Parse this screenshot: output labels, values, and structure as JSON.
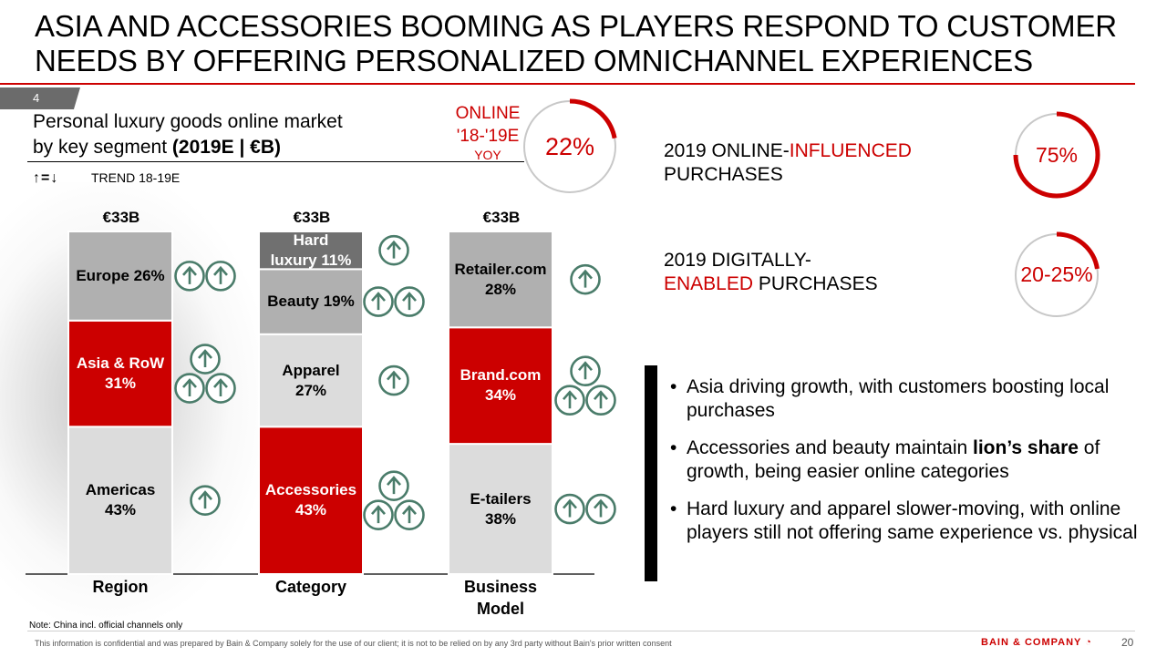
{
  "header": {
    "title_line1": "ASIA AND ACCESSORIES BOOMING AS PLAYERS RESPOND TO CUSTOMER",
    "title_line2": "NEEDS BY OFFERING PERSONALIZED OMNICHANNEL EXPERIENCES",
    "slide_tab": "4"
  },
  "chart_header": {
    "title_line1": "Personal luxury goods online market",
    "title_line2_plain": "by key segment ",
    "title_line2_bold": "(2019E | €B)",
    "trend_symbols": "↑=↓",
    "trend_label": "TREND 18-19E"
  },
  "colors": {
    "accent": "#cc0000",
    "dark_gray": "#707070",
    "mid_gray": "#b0b0b0",
    "light_gray": "#dcdcdc",
    "arrow_green": "#4a7c6a"
  },
  "chart_data": {
    "type": "bar",
    "stacking": "100% stacked",
    "columns": [
      {
        "category": "Region",
        "total": "€33B",
        "segments": [
          {
            "name": "Americas",
            "value": 43,
            "label_line1": "Americas",
            "label_line2": "43%",
            "color": "light",
            "trend_arrows": 1
          },
          {
            "name": "Asia & RoW",
            "value": 31,
            "label_line1": "Asia & RoW",
            "label_line2": "31%",
            "color": "red",
            "trend_arrows": 3
          },
          {
            "name": "Europe",
            "value": 26,
            "label_line1": "Europe 26%",
            "label_line2": "",
            "color": "mid",
            "trend_arrows": 2
          }
        ]
      },
      {
        "category": "Category",
        "total": "€33B",
        "segments": [
          {
            "name": "Accessories",
            "value": 43,
            "label_line1": "Accessories",
            "label_line2": "43%",
            "color": "red",
            "trend_arrows": 3
          },
          {
            "name": "Apparel",
            "value": 27,
            "label_line1": "Apparel",
            "label_line2": "27%",
            "color": "light",
            "trend_arrows": 1
          },
          {
            "name": "Beauty",
            "value": 19,
            "label_line1": "Beauty 19%",
            "label_line2": "",
            "color": "mid",
            "trend_arrows": 2
          },
          {
            "name": "Hard luxury",
            "value": 11,
            "label_line1": "Hard",
            "label_line2": "luxury 11%",
            "color": "dark",
            "trend_arrows": 1
          }
        ]
      },
      {
        "category_line1": "Business",
        "category_line2": "Model",
        "total": "€33B",
        "segments": [
          {
            "name": "E-tailers",
            "value": 38,
            "label_line1": "E-tailers",
            "label_line2": "38%",
            "color": "light",
            "trend_arrows": 2
          },
          {
            "name": "Brand.com",
            "value": 34,
            "label_line1": "Brand.com",
            "label_line2": "34%",
            "color": "red",
            "trend_arrows": 3
          },
          {
            "name": "Retailer.com",
            "value": 28,
            "label_line1": "Retailer.com",
            "label_line2": "28%",
            "color": "mid",
            "trend_arrows": 1
          }
        ]
      }
    ],
    "ylim": [
      0,
      100
    ]
  },
  "online_growth": {
    "label_line1": "ONLINE",
    "label_line2": "'18-'19E",
    "label_line3": "YOY",
    "value_text": "22%",
    "fraction": 0.22
  },
  "metrics": [
    {
      "text_plain1": "2019 ONLINE-",
      "text_red": "INFLUENCED",
      "text_line2": "PURCHASES",
      "value_text": "75%",
      "fraction": 0.75
    },
    {
      "text_line1": "2019 DIGITALLY-",
      "text_red": "ENABLED",
      "text_line2": " PURCHASES",
      "value_text": "20-25%",
      "fraction": 0.225
    }
  ],
  "bullets": [
    {
      "text": "Asia driving growth, with customers boosting local purchases"
    },
    {
      "text_before": "Accessories and beauty maintain ",
      "text_bold": "lion’s share",
      "text_after": " of growth, being easier online categories"
    },
    {
      "text": "Hard luxury and apparel slower-moving, with online players still not offering same experience vs. physical"
    }
  ],
  "footer": {
    "note": "Note: China incl. official channels only",
    "confidential": "This information is confidential and was prepared by Bain & Company solely for the use of our client; it is not to be relied on by any 3rd party without Bain's prior written consent",
    "logo_text": "BAIN & COMPANY",
    "page_number": "20"
  }
}
